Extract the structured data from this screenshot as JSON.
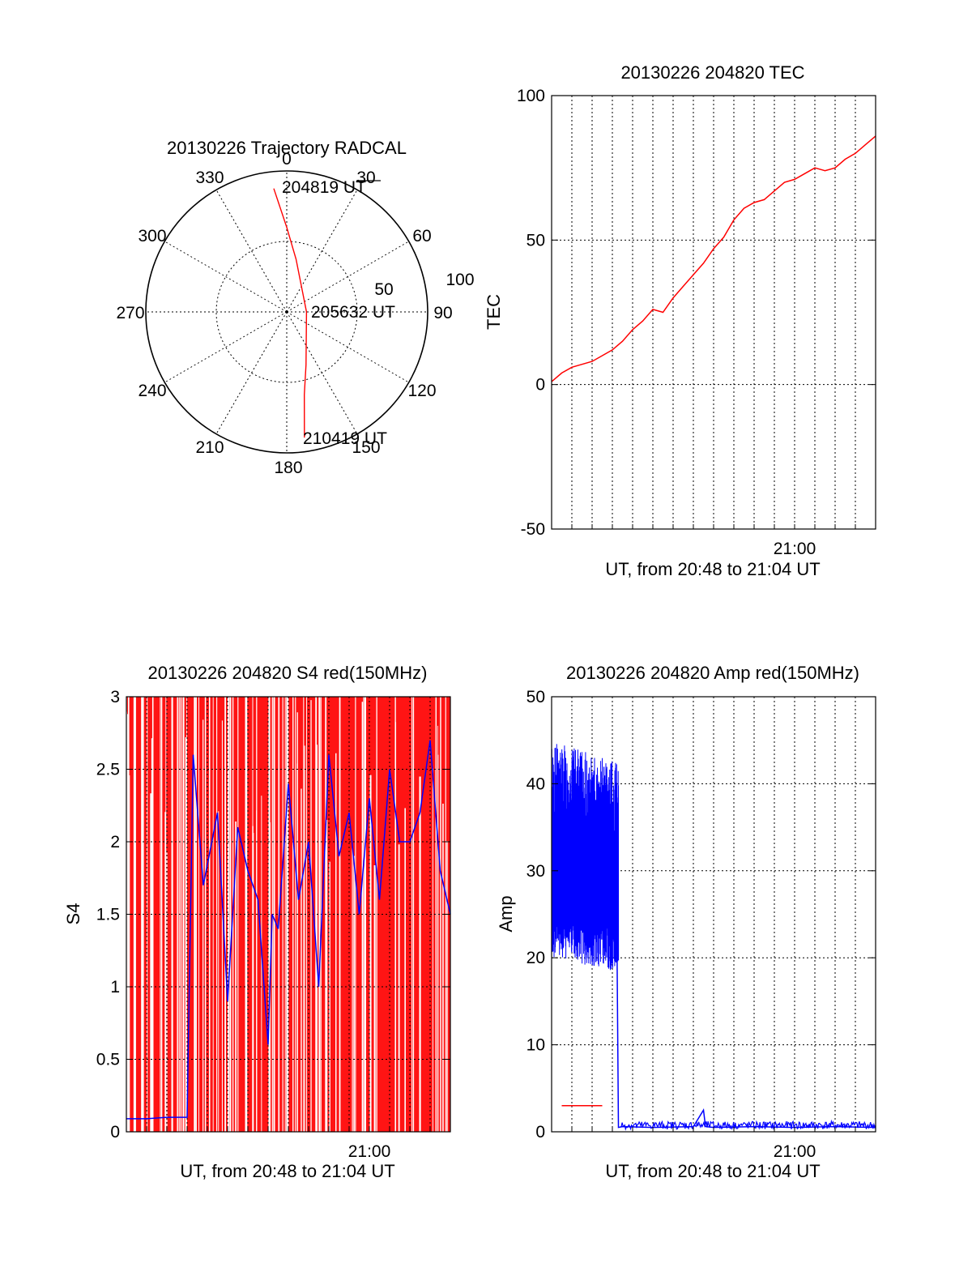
{
  "colors": {
    "red": "#ff0000",
    "blue": "#0000ff",
    "axis": "#000000"
  },
  "chart_data": [
    {
      "id": "polar",
      "type": "polar-trajectory",
      "title": "20130226 Trajectory RADCAL",
      "radial_ticks": [
        "50",
        "100"
      ],
      "radial_max": 100,
      "angle_labels": [
        {
          "deg": 0,
          "text": "0"
        },
        {
          "deg": 30,
          "text": "30"
        },
        {
          "deg": 60,
          "text": "60"
        },
        {
          "deg": 90,
          "text": "90"
        },
        {
          "deg": 120,
          "text": "120"
        },
        {
          "deg": 150,
          "text": "150"
        },
        {
          "deg": 180,
          "text": "180"
        },
        {
          "deg": 210,
          "text": "210"
        },
        {
          "deg": 240,
          "text": "240"
        },
        {
          "deg": 270,
          "text": "270"
        },
        {
          "deg": 300,
          "text": "300"
        },
        {
          "deg": 330,
          "text": "330"
        }
      ],
      "trajectory": [
        [
          354,
          88
        ],
        [
          0,
          60
        ],
        [
          10,
          38
        ],
        [
          90,
          14
        ],
        [
          160,
          40
        ],
        [
          168,
          60
        ],
        [
          172,
          90
        ]
      ],
      "time_labels": {
        "start": "204819 UT",
        "mid": "205632 UT",
        "end": "210419 UT"
      }
    },
    {
      "id": "tec",
      "type": "line",
      "title": "20130226 204820 TEC",
      "ylabel": "TEC",
      "xlabel": "UT, from 20:48 to 21:04 UT",
      "ylim": [
        -50,
        100
      ],
      "yticks": [
        "-50",
        "0",
        "50",
        "100"
      ],
      "xlim_min": [
        0,
        16
      ],
      "xtick_labels": [
        {
          "min": 12,
          "text": "21:00"
        }
      ],
      "series": [
        {
          "color": "#ff0000",
          "x": [
            0,
            0.5,
            1,
            1.5,
            2,
            2.5,
            3,
            3.5,
            4,
            4.5,
            5,
            5.5,
            6,
            6.5,
            7,
            7.5,
            8,
            8.5,
            9,
            9.5,
            10,
            10.5,
            11,
            11.5,
            12,
            12.5,
            13,
            13.5,
            14,
            14.5,
            15,
            15.5,
            16
          ],
          "y": [
            1,
            4,
            6,
            7,
            8,
            10,
            12,
            15,
            19,
            22,
            26,
            25,
            30,
            34,
            38,
            42,
            47,
            51,
            57,
            61,
            63,
            64,
            67,
            70,
            71,
            73,
            75,
            74,
            75,
            78,
            80,
            83,
            86
          ]
        }
      ]
    },
    {
      "id": "s4",
      "type": "line",
      "title": "20130226 204820 S4 red(150MHz)",
      "ylabel": "S4",
      "xlabel": "UT, from 20:48 to 21:04 UT",
      "ylim": [
        0,
        3
      ],
      "yticks": [
        "0",
        "0.5",
        "1",
        "1.5",
        "2",
        "2.5",
        "3"
      ],
      "xlim_min": [
        0,
        16
      ],
      "xtick_labels": [
        {
          "min": 12,
          "text": "21:00"
        }
      ],
      "series": [
        {
          "color": "#0000ff",
          "x": [
            0,
            1,
            2,
            3,
            3.3,
            3.8,
            4.5,
            5,
            5.5,
            6,
            6.5,
            7,
            7.2,
            7.5,
            8,
            8.5,
            9,
            9.5,
            10,
            10.5,
            11,
            11.5,
            12,
            12.5,
            13,
            13.5,
            14,
            14.5,
            15,
            15.5,
            16
          ],
          "y": [
            0.09,
            0.09,
            0.1,
            0.1,
            2.6,
            1.7,
            2.2,
            0.9,
            2.1,
            1.8,
            1.6,
            0.6,
            1.5,
            1.4,
            2.4,
            1.6,
            2.0,
            1.0,
            2.6,
            1.9,
            2.2,
            1.5,
            2.3,
            1.6,
            2.5,
            2.0,
            2.0,
            2.2,
            2.7,
            1.8,
            1.5
          ]
        }
      ]
    },
    {
      "id": "amp",
      "type": "line",
      "title": "20130226 204820 Amp red(150MHz)",
      "ylabel": "Amp",
      "xlabel": "UT, from 20:48 to 21:04 UT",
      "ylim": [
        0,
        50
      ],
      "yticks": [
        "0",
        "10",
        "20",
        "30",
        "40",
        "50"
      ],
      "xlim_min": [
        0,
        16
      ],
      "xtick_labels": [
        {
          "min": 12,
          "text": "21:00"
        }
      ],
      "series": [
        {
          "color": "#0000ff",
          "x": [
            0,
            0.5,
            1,
            1.5,
            2,
            2.5,
            3,
            3.2,
            3.3,
            3.5,
            5,
            7,
            7.5,
            7.6,
            8,
            10,
            12,
            14,
            16
          ],
          "y": [
            35,
            34,
            33,
            32,
            32,
            31,
            31,
            30,
            0.5,
            0.6,
            0.5,
            0.6,
            2.5,
            0.6,
            0.5,
            0.6,
            0.5,
            0.6,
            0.5
          ]
        },
        {
          "color": "#ff0000",
          "x": [
            0.5,
            1.5,
            2.5
          ],
          "y": [
            3,
            3,
            3
          ]
        }
      ]
    }
  ]
}
